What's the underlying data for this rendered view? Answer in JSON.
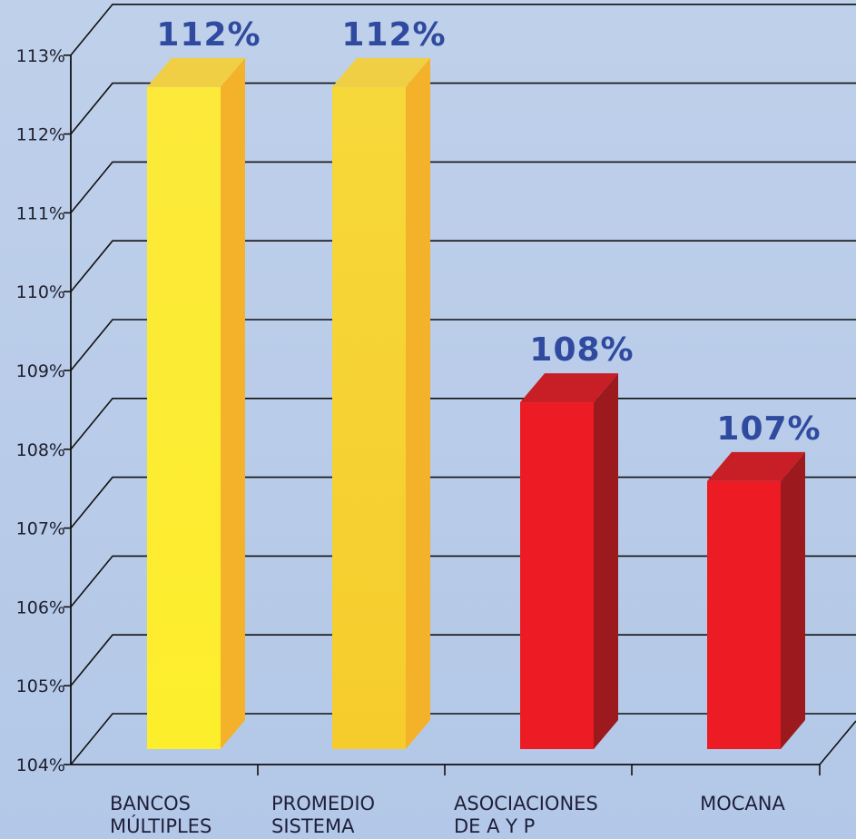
{
  "chart_data": {
    "type": "bar",
    "title": "",
    "xlabel": "",
    "ylabel": "",
    "ylim": [
      104,
      113
    ],
    "y_ticks": [
      "104%",
      "105%",
      "106%",
      "107%",
      "108%",
      "109%",
      "110%",
      "111%",
      "112%",
      "113%"
    ],
    "grid": true,
    "three_d": true,
    "categories": [
      [
        "BANCOS",
        "MÚLTIPLES"
      ],
      [
        "PROMEDIO",
        "SISTEMA"
      ],
      [
        "ASOCIACIONES",
        "DE A Y P"
      ],
      [
        "MOCANA"
      ]
    ],
    "values": [
      112.4,
      112.4,
      108.4,
      107.4
    ],
    "data_labels": [
      "112%",
      "112%",
      "108%",
      "107%"
    ],
    "colors": {
      "bar_gold_front": "#fbe52c",
      "bar_gold_side": "#f3b22a",
      "bar_gold_top": "#f0cf45",
      "bar_red_front": "#ed1c24",
      "bar_red_side": "#9c1a1e",
      "bar_red_top": "#c81e25",
      "data_label": "#2f4a9e",
      "background": "#bccfea"
    },
    "bar_color_keys": [
      "gold",
      "gold",
      "red",
      "red"
    ]
  }
}
